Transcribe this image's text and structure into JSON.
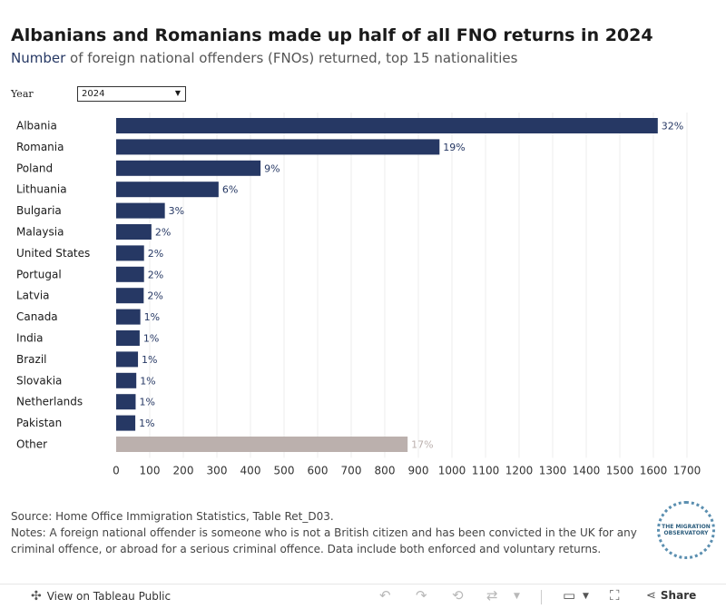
{
  "title": "Albanians and Romanians made up half of all FNO returns in 2024",
  "subtitle_accent": "Number",
  "subtitle_rest": " of foreign national offenders (FNOs) returned, top 15 nationalities",
  "filter": {
    "label": "Year",
    "value": "2024"
  },
  "colors": {
    "bar": "#263864",
    "other": "#bbb0ad",
    "label": "#263864",
    "other_label": "#bbb0ad",
    "grid": "#ececec"
  },
  "chart_data": {
    "type": "bar",
    "orientation": "horizontal",
    "categories": [
      "Albania",
      "Romania",
      "Poland",
      "Lithuania",
      "Bulgaria",
      "Malaysia",
      "United States",
      "Portugal",
      "Latvia",
      "Canada",
      "India",
      "Brazil",
      "Slovakia",
      "Netherlands",
      "Pakistan",
      "Other"
    ],
    "values": [
      1613,
      963,
      430,
      305,
      145,
      105,
      83,
      83,
      82,
      72,
      70,
      65,
      60,
      58,
      57,
      868
    ],
    "labels": [
      "32%",
      "19%",
      "9%",
      "6%",
      "3%",
      "2%",
      "2%",
      "2%",
      "2%",
      "1%",
      "1%",
      "1%",
      "1%",
      "1%",
      "1%",
      "17%"
    ],
    "xlim": [
      0,
      1700
    ],
    "xticks": [
      0,
      100,
      200,
      300,
      400,
      500,
      600,
      700,
      800,
      900,
      1000,
      1100,
      1200,
      1300,
      1400,
      1500,
      1600,
      1700
    ],
    "grid": true
  },
  "notes": {
    "source": "Source: Home Office Immigration Statistics, Table Ret_D03.",
    "notes": "Notes: A foreign national offender is someone who is not a British citizen and has been convicted in the UK for any criminal offence, or abroad for a serious criminal offence. Data include both enforced and voluntary returns."
  },
  "logo_text": "THE MIGRATION OBSERVATORY",
  "toolbar": {
    "view_label": "View on Tableau Public",
    "share_label": "Share"
  }
}
